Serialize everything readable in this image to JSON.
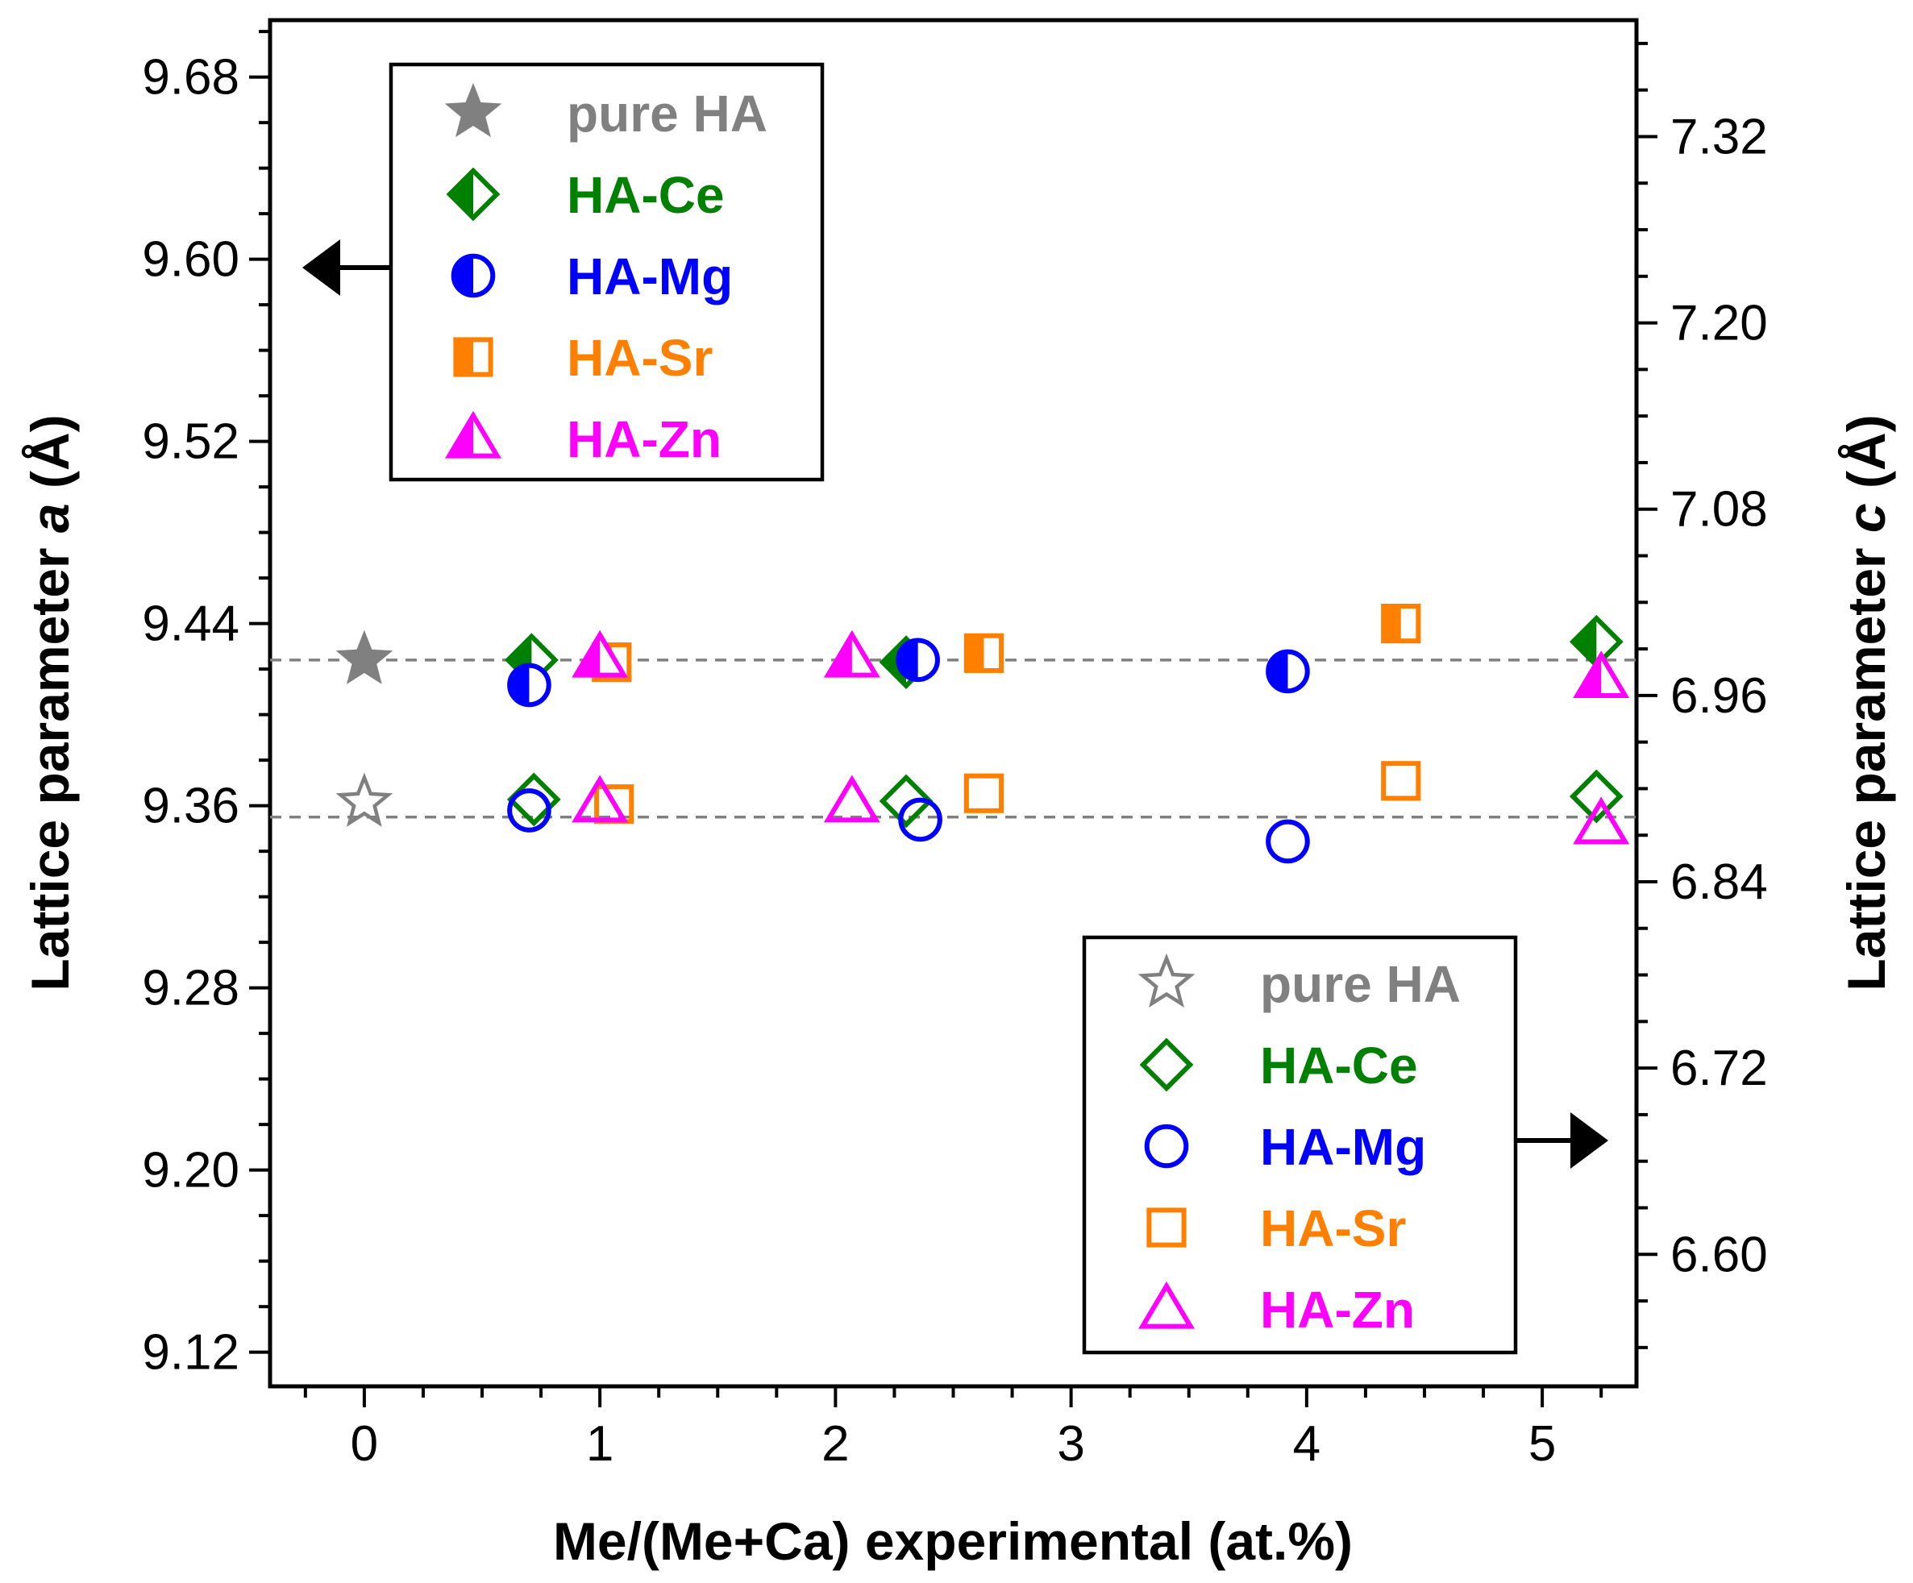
{
  "chart_data": {
    "type": "scatter",
    "xlabel": "Me/(Me+Ca) experimental (at.%)",
    "ylabel_left": {
      "prefix": "Lattice parameter ",
      "italic": "a",
      "suffix": " (Å)"
    },
    "ylabel_right": {
      "prefix": "Lattice parameter ",
      "italic": "c",
      "suffix": " (Å)"
    },
    "xlim": [
      -0.4,
      5.4
    ],
    "ylim_left": [
      9.105,
      9.705
    ],
    "ylim_right": [
      6.515,
      7.395
    ],
    "x_ticks": [
      0,
      1,
      2,
      3,
      4,
      5
    ],
    "x_tick_labels": [
      "0",
      "1",
      "2",
      "3",
      "4",
      "5"
    ],
    "y_left_ticks": [
      9.12,
      9.2,
      9.28,
      9.36,
      9.44,
      9.52,
      9.6,
      9.68
    ],
    "y_left_tick_labels": [
      "9.12",
      "9.20",
      "9.28",
      "9.36",
      "9.44",
      "9.52",
      "9.60",
      "9.68"
    ],
    "y_right_ticks": [
      6.6,
      6.72,
      6.84,
      6.96,
      7.08,
      7.2,
      7.32
    ],
    "y_right_tick_labels": [
      "6.60",
      "6.72",
      "6.84",
      "6.96",
      "7.08",
      "7.20",
      "7.32"
    ],
    "reference_lines_left_axis": [
      9.424,
      9.355
    ],
    "series": [
      {
        "name": "pure HA (a)",
        "axis": "left",
        "marker": "star",
        "fill": "full",
        "color": "#808080",
        "x": [
          0
        ],
        "y": [
          9.424
        ]
      },
      {
        "name": "HA-Ce (a)",
        "axis": "left",
        "marker": "diamond",
        "fill": "left-half",
        "color": "#008000",
        "x": [
          0.71,
          2.3,
          5.23
        ],
        "y": [
          9.424,
          9.423,
          9.432
        ]
      },
      {
        "name": "HA-Mg (a)",
        "axis": "left",
        "marker": "circle",
        "fill": "left-half",
        "color": "#0000ff",
        "x": [
          0.7,
          2.35,
          3.92
        ],
        "y": [
          9.413,
          9.424,
          9.419
        ]
      },
      {
        "name": "HA-Sr (a)",
        "axis": "left",
        "marker": "square",
        "fill": "left-half",
        "color": "#ff8000",
        "x": [
          1.05,
          2.63,
          4.4
        ],
        "y": [
          9.423,
          9.427,
          9.44
        ]
      },
      {
        "name": "HA-Zn (a)",
        "axis": "left",
        "marker": "triangle",
        "fill": "left-half",
        "color": "#ff00ff",
        "x": [
          1.0,
          2.07,
          5.25
        ],
        "y": [
          9.425,
          9.425,
          9.416
        ]
      },
      {
        "name": "pure HA (c)",
        "axis": "right",
        "marker": "star",
        "fill": "none",
        "color": "#808080",
        "x": [
          0
        ],
        "y": [
          6.891
        ]
      },
      {
        "name": "HA-Ce (c)",
        "axis": "right",
        "marker": "diamond",
        "fill": "none",
        "color": "#008000",
        "x": [
          0.72,
          2.3,
          5.23
        ],
        "y": [
          6.893,
          6.892,
          6.895
        ]
      },
      {
        "name": "HA-Mg (c)",
        "axis": "right",
        "marker": "circle",
        "fill": "none",
        "color": "#0000ff",
        "x": [
          0.7,
          2.36,
          3.92
        ],
        "y": [
          6.886,
          6.88,
          6.866
        ]
      },
      {
        "name": "HA-Sr (c)",
        "axis": "right",
        "marker": "square",
        "fill": "none",
        "color": "#ff8000",
        "x": [
          1.06,
          2.63,
          4.4
        ],
        "y": [
          6.89,
          6.897,
          6.905
        ]
      },
      {
        "name": "HA-Zn (c)",
        "axis": "right",
        "marker": "triangle",
        "fill": "none",
        "color": "#ff00ff",
        "x": [
          1.0,
          2.07,
          5.25
        ],
        "y": [
          6.891,
          6.891,
          6.877
        ]
      }
    ],
    "legends": [
      {
        "placement": "top-left",
        "points_to": "left axis",
        "entries": [
          {
            "label": "pure HA",
            "marker": "star",
            "fill": "full",
            "color": "#808080"
          },
          {
            "label": "HA-Ce",
            "marker": "diamond",
            "fill": "left-half",
            "color": "#008000"
          },
          {
            "label": "HA-Mg",
            "marker": "circle",
            "fill": "left-half",
            "color": "#0000ff"
          },
          {
            "label": "HA-Sr",
            "marker": "square",
            "fill": "left-half",
            "color": "#ff8000"
          },
          {
            "label": "HA-Zn",
            "marker": "triangle",
            "fill": "left-half",
            "color": "#ff00ff"
          }
        ]
      },
      {
        "placement": "bottom-right",
        "points_to": "right axis",
        "entries": [
          {
            "label": "pure HA",
            "marker": "star",
            "fill": "none",
            "color": "#808080"
          },
          {
            "label": "HA-Ce",
            "marker": "diamond",
            "fill": "none",
            "color": "#008000"
          },
          {
            "label": "HA-Mg",
            "marker": "circle",
            "fill": "none",
            "color": "#0000ff"
          },
          {
            "label": "HA-Sr",
            "marker": "square",
            "fill": "none",
            "color": "#ff8000"
          },
          {
            "label": "HA-Zn",
            "marker": "triangle",
            "fill": "none",
            "color": "#ff00ff"
          }
        ]
      }
    ]
  }
}
